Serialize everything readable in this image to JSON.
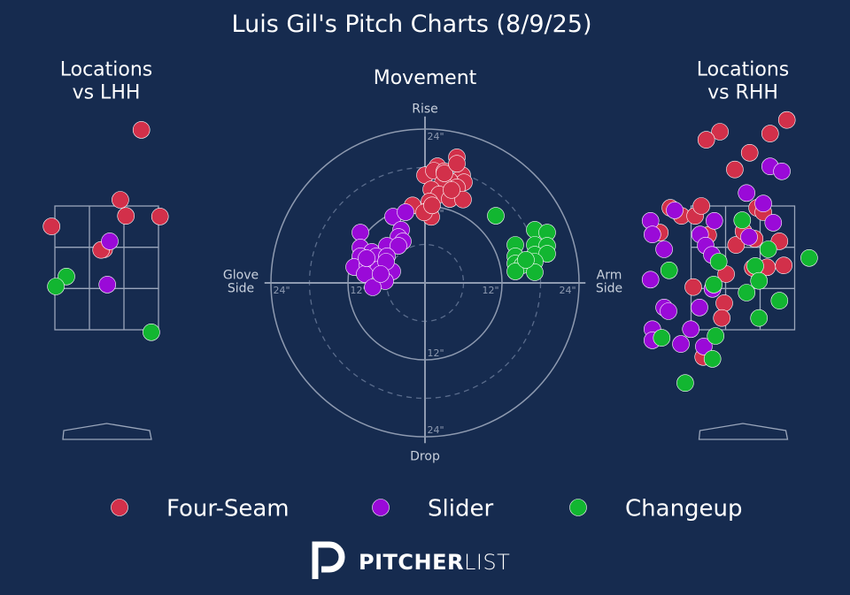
{
  "title": "Luis Gil's Pitch Charts (8/9/25)",
  "brand": {
    "bold": "PITCHER",
    "light": "LIST"
  },
  "chart_data": [
    {
      "type": "scatter",
      "title": "Locations\nvs LHH",
      "xlim": [
        -1.5,
        1.5
      ],
      "ylim": [
        0,
        5
      ],
      "series": [
        {
          "name": "Four-Seam",
          "color": "#d2304a",
          "x": [
            0.56,
            0.22,
            0.31,
            0.86,
            -0.89,
            -0.04,
            -0.09
          ],
          "y": [
            4.73,
            3.6,
            3.34,
            3.33,
            3.17,
            2.8,
            2.79
          ]
        },
        {
          "name": "Slider",
          "color": "#9a0ad8",
          "x": [
            0.05,
            0.01
          ],
          "y": [
            2.93,
            2.23
          ]
        },
        {
          "name": "Changeup",
          "color": "#12b631",
          "x": [
            -0.65,
            -0.82,
            0.72
          ],
          "y": [
            2.36,
            2.2,
            1.46
          ]
        }
      ]
    },
    {
      "type": "scatter",
      "title": "Movement",
      "xlim": [
        -25,
        25
      ],
      "ylim": [
        -25,
        25
      ],
      "axis_labels": {
        "top": "Rise",
        "bottom": "Drop",
        "left": "Glove\nSide",
        "right": "Arm\nSide"
      },
      "xticks": [
        {
          "value": -24,
          "label": "24\""
        },
        {
          "value": -12,
          "label": "12\""
        },
        {
          "value": 12,
          "label": "12\""
        },
        {
          "value": 24,
          "label": "24\""
        }
      ],
      "yticks": [
        {
          "value": -24,
          "label": "24\""
        },
        {
          "value": -12,
          "label": "12\""
        },
        {
          "value": 12,
          "label": "12\""
        },
        {
          "value": 24,
          "label": "24\""
        }
      ],
      "series": [
        {
          "name": "Four-Seam",
          "color": "#d2304a",
          "x": [
            4.97,
            1.93,
            0,
            1.38,
            3.03,
            5.79,
            6.07,
            3.86,
            4.97,
            2.76,
            0.97,
            2.21,
            0.69,
            3.86,
            5.93,
            -1.93,
            0.28,
            0.97,
            -0.14,
            3.03,
            4.97,
            1.1,
            4.14
          ],
          "y": [
            19.6,
            18.2,
            16.8,
            17.5,
            17.4,
            16.8,
            15.7,
            15.9,
            14.9,
            15.6,
            14.6,
            13.8,
            12.7,
            13.1,
            13.0,
            12.1,
            11.2,
            10.3,
            11.0,
            17.1,
            18.6,
            12.1,
            14.5
          ]
        },
        {
          "name": "Slider",
          "color": "#9a0ad8",
          "x": [
            -10.07,
            -4.97,
            -3.03,
            -3.72,
            -4.14,
            -3.45,
            -10.07,
            -8.28,
            -5.93,
            -4.14,
            -10.07,
            -7.59,
            -5.93,
            -11.03,
            -8.97,
            -7.31,
            -5.1,
            -9.38,
            -6.21,
            -8.14,
            -6.07,
            -9.1,
            -6.9
          ],
          "y": [
            7.86,
            10.34,
            11.03,
            8.28,
            7.17,
            6.48,
            5.52,
            4.83,
            5.79,
            5.79,
            4.14,
            4.14,
            4.14,
            2.48,
            2.76,
            2.07,
            1.79,
            1.38,
            0.28,
            -0.69,
            3.31,
            3.86,
            1.38
          ]
        },
        {
          "name": "Changeup",
          "color": "#12b631",
          "x": [
            11.03,
            17.1,
            19.03,
            14.07,
            17.1,
            19.03,
            14.07,
            17.1,
            19.03,
            14.07,
            17.1,
            15.17,
            14.07,
            17.1,
            15.72
          ],
          "y": [
            10.48,
            8.28,
            7.86,
            5.93,
            5.93,
            5.79,
            4.14,
            4.41,
            4.55,
            3.03,
            3.31,
            2.76,
            1.79,
            1.66,
            3.59
          ]
        }
      ]
    },
    {
      "type": "scatter",
      "title": "Locations\nvs RHH",
      "xlim": [
        -1.5,
        1.5
      ],
      "ylim": [
        0,
        5
      ],
      "series": [
        {
          "name": "Four-Seam",
          "color": "#d2304a",
          "x": [
            0.71,
            -0.37,
            -0.59,
            0.44,
            0.11,
            -0.13,
            -1.17,
            -0.99,
            -0.77,
            -0.67,
            -1.34,
            0.23,
            0.33,
            -0.11,
            0.01,
            0.19,
            0.59,
            0.39,
            0.66,
            0.16,
            -0.27,
            -0.8,
            -0.3,
            -0.34,
            -0.64,
            -0.56
          ],
          "y": [
            4.89,
            4.7,
            4.57,
            4.67,
            4.36,
            4.09,
            3.47,
            3.34,
            3.34,
            3.5,
            3.07,
            3.47,
            3.4,
            2.87,
            3.09,
            2.97,
            2.93,
            2.51,
            2.54,
            2.5,
            2.4,
            2.19,
            1.93,
            1.69,
            1.06,
            3.03
          ]
        },
        {
          "name": "Slider",
          "color": "#9a0ad8",
          "x": [
            -1.49,
            -1.46,
            -1.1,
            -0.46,
            0.06,
            0.44,
            0.63,
            0.33,
            0.49,
            0.1,
            -0.69,
            -0.6,
            -0.5,
            -1.27,
            -1.49,
            -0.49,
            -0.7,
            -1.27,
            -1.2,
            -1.46,
            -1.46,
            -0.84,
            -0.63,
            -1.0
          ],
          "y": [
            3.26,
            3.04,
            3.43,
            3.26,
            3.71,
            4.14,
            4.06,
            3.54,
            3.23,
            3.0,
            3.04,
            2.86,
            2.71,
            2.8,
            2.31,
            2.16,
            1.86,
            1.86,
            1.8,
            1.51,
            1.33,
            1.51,
            1.23,
            1.27
          ]
        },
        {
          "name": "Changeup",
          "color": "#12b631",
          "x": [
            1.07,
            -0.01,
            0.41,
            0.2,
            0.26,
            0.06,
            0.59,
            0.26,
            -1.19,
            -0.39,
            -0.47,
            -1.31,
            -0.49,
            -0.93,
            -0.44
          ],
          "y": [
            2.66,
            3.27,
            2.8,
            2.53,
            2.29,
            2.1,
            1.97,
            1.69,
            2.46,
            2.6,
            2.23,
            1.37,
            1.03,
            0.64,
            1.4
          ]
        }
      ]
    }
  ]
}
